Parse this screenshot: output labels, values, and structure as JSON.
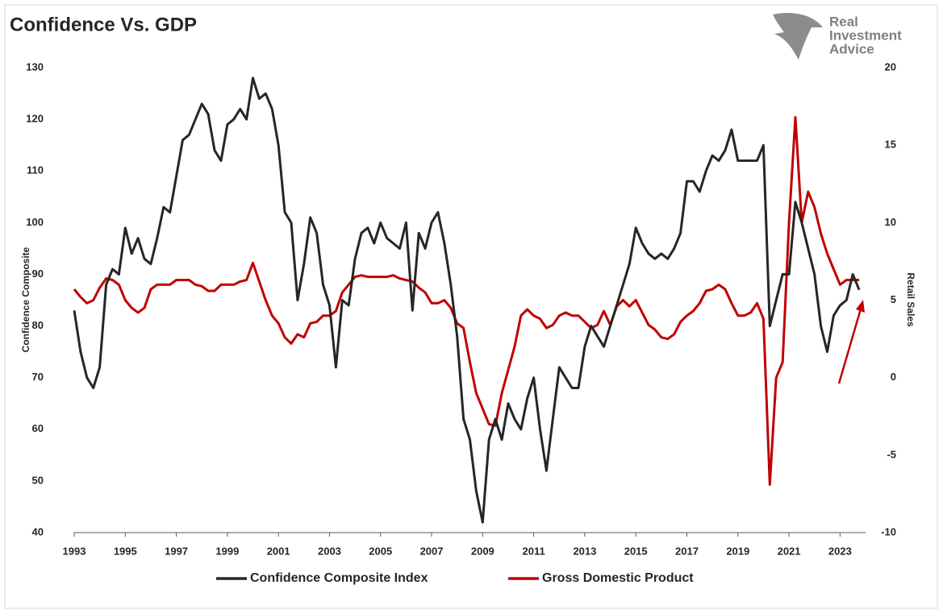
{
  "chart_data": {
    "type": "line",
    "title": "Confidence Vs. GDP",
    "logo": [
      "Real",
      "Investment",
      "Advice"
    ],
    "y_label": "Confidence Composite",
    "y2_label": "Retail Sales",
    "xlim": [
      1993,
      2024
    ],
    "xticks": [
      1993,
      1995,
      1997,
      1999,
      2001,
      2003,
      2005,
      2007,
      2009,
      2011,
      2013,
      2015,
      2017,
      2019,
      2021,
      2023
    ],
    "ylim": [
      40,
      130
    ],
    "yticks": [
      40,
      50,
      60,
      70,
      80,
      90,
      100,
      110,
      120,
      130
    ],
    "y2lim": [
      -10,
      20
    ],
    "y2ticks": [
      -10,
      -5,
      0,
      5,
      10,
      15,
      20
    ],
    "x": [
      1993,
      1993.25,
      1993.5,
      1993.75,
      1994,
      1994.25,
      1994.5,
      1994.75,
      1995,
      1995.25,
      1995.5,
      1995.75,
      1996,
      1996.25,
      1996.5,
      1996.75,
      1997,
      1997.25,
      1997.5,
      1997.75,
      1998,
      1998.25,
      1998.5,
      1998.75,
      1999,
      1999.25,
      1999.5,
      1999.75,
      2000,
      2000.25,
      2000.5,
      2000.75,
      2001,
      2001.25,
      2001.5,
      2001.75,
      2002,
      2002.25,
      2002.5,
      2002.75,
      2003,
      2003.25,
      2003.5,
      2003.75,
      2004,
      2004.25,
      2004.5,
      2004.75,
      2005,
      2005.25,
      2005.5,
      2005.75,
      2006,
      2006.25,
      2006.5,
      2006.75,
      2007,
      2007.25,
      2007.5,
      2007.75,
      2008,
      2008.25,
      2008.5,
      2008.75,
      2009,
      2009.25,
      2009.5,
      2009.75,
      2010,
      2010.25,
      2010.5,
      2010.75,
      2011,
      2011.25,
      2011.5,
      2011.75,
      2012,
      2012.25,
      2012.5,
      2012.75,
      2013,
      2013.25,
      2013.5,
      2013.75,
      2014,
      2014.25,
      2014.5,
      2014.75,
      2015,
      2015.25,
      2015.5,
      2015.75,
      2016,
      2016.25,
      2016.5,
      2016.75,
      2017,
      2017.25,
      2017.5,
      2017.75,
      2018,
      2018.25,
      2018.5,
      2018.75,
      2019,
      2019.25,
      2019.5,
      2019.75,
      2020,
      2020.25,
      2020.5,
      2020.75,
      2021,
      2021.25,
      2021.5,
      2021.75,
      2022,
      2022.25,
      2022.5,
      2022.75,
      2023,
      2023.25,
      2023.5,
      2023.75
    ],
    "series": [
      {
        "name": "Confidence Composite Index",
        "color": "#262626",
        "values": [
          83,
          75,
          70,
          68,
          72,
          88,
          91,
          90,
          99,
          94,
          97,
          93,
          92,
          97,
          103,
          102,
          109,
          116,
          117,
          120,
          123,
          121,
          114,
          112,
          119,
          120,
          122,
          120,
          128,
          124,
          125,
          122,
          115,
          102,
          100,
          85,
          92,
          101,
          98,
          88,
          84,
          72,
          85,
          84,
          93,
          98,
          99,
          96,
          100,
          97,
          96,
          95,
          100,
          83,
          98,
          95,
          100,
          102,
          96,
          88,
          78,
          62,
          58,
          48,
          42,
          58,
          62,
          58,
          65,
          62,
          60,
          66,
          70,
          60,
          52,
          62,
          72,
          70,
          68,
          68,
          76,
          80,
          78,
          76,
          80,
          84,
          88,
          92,
          99,
          96,
          94,
          93,
          94,
          93,
          95,
          98,
          108,
          108,
          106,
          110,
          113,
          112,
          114,
          118,
          112,
          112,
          112,
          112,
          115,
          80,
          85,
          90,
          90,
          104,
          100,
          95,
          90,
          80,
          75,
          82,
          84,
          85,
          90,
          87
        ]
      },
      {
        "name": "Gross Domestic Product",
        "color": "#c00000",
        "axis": "y2",
        "values": [
          5.7,
          5.2,
          4.8,
          5.0,
          5.8,
          6.4,
          6.3,
          6.0,
          5.0,
          4.5,
          4.2,
          4.5,
          5.7,
          6.0,
          6.0,
          6.0,
          6.3,
          6.3,
          6.3,
          6.0,
          5.9,
          5.6,
          5.6,
          6.0,
          6.0,
          6.0,
          6.2,
          6.3,
          7.4,
          6.2,
          5.0,
          4.0,
          3.5,
          2.6,
          2.2,
          2.8,
          2.6,
          3.5,
          3.6,
          4.0,
          4.0,
          4.3,
          5.5,
          6.0,
          6.5,
          6.6,
          6.5,
          6.5,
          6.5,
          6.5,
          6.6,
          6.4,
          6.3,
          6.2,
          5.8,
          5.5,
          4.8,
          4.8,
          5.0,
          4.5,
          3.5,
          3.2,
          1.0,
          -1.0,
          -2.0,
          -3.0,
          -3.1,
          -1.0,
          0.5,
          2.0,
          4.0,
          4.4,
          4.0,
          3.8,
          3.2,
          3.4,
          4.0,
          4.2,
          4.0,
          4.0,
          3.6,
          3.2,
          3.4,
          4.3,
          3.4,
          4.6,
          5.0,
          4.6,
          5.0,
          4.2,
          3.4,
          3.1,
          2.6,
          2.5,
          2.8,
          3.6,
          4.0,
          4.3,
          4.8,
          5.6,
          5.7,
          6.0,
          5.7,
          4.8,
          4.0,
          4.0,
          4.2,
          4.8,
          3.8,
          -6.9,
          0.0,
          1.0,
          10.0,
          16.8,
          10.0,
          12.0,
          11.0,
          9.3,
          8.0,
          7.0,
          6.0,
          6.3,
          6.3,
          6.3
        ]
      }
    ]
  }
}
